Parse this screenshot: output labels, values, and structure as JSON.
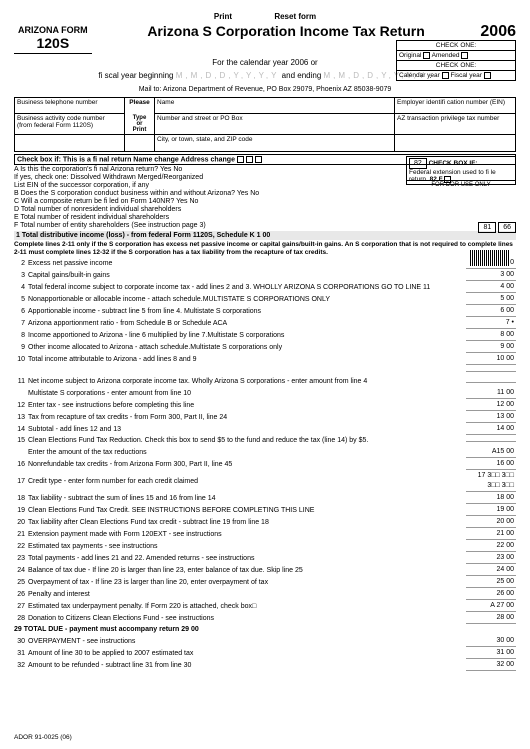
{
  "buttons": {
    "print": "Print",
    "reset": "Reset form"
  },
  "header": {
    "form_label": "ARIZONA FORM",
    "form_no": "120S",
    "title": "Arizona S Corporation Income Tax Return",
    "year": "2006",
    "calendar_line": "For the calendar year 2006 or",
    "fiscal_line": "fi scal year beginning",
    "and_ending": "and ending",
    "mailto": "Mail to: Arizona Department of Revenue, PO Box 29079, Phoenix AZ 85038-9079"
  },
  "check_one": {
    "h1": "CHECK ONE:",
    "orig": "Original",
    "amend": "Amended",
    "h2": "CHECK ONE:",
    "cal": "Calendar year",
    "fisc": "Fiscal year"
  },
  "info": {
    "btn": "Business telephone number",
    "please": "Please",
    "type": "Type",
    "or": "or",
    "print": "Print",
    "name": "Name",
    "ein": "Employer identifi cation number (EIN)",
    "bacn": "Business activity code number",
    "bacn2": "(from federal Form 1120S)",
    "street": "Number and street or PO Box",
    "azt": "AZ transaction privilege tax number",
    "city": "City, or town, state, and ZIP code"
  },
  "checkboxes": {
    "line68": "Check box if: This is a fi nal return   Name change   Address change",
    "A": "A Is this the corporation's fi nal Arizona return? Yes  No",
    "A2": "If yes, check one: Dissolved  Withdrawn  Merged/Reorganized",
    "A3": "List EIN of the successor corporation, if any",
    "B": "B Does the S corporation conduct business within and without Arizona? Yes  No",
    "C": "C Will a composite return be fi led on Form 140NR?  Yes  No",
    "D": "D Total number of nonresident individual shareholders",
    "E": "E Total number of resident individual shareholders",
    "F": "F Total number of entity shareholders (See instruction page 3)"
  },
  "box82": {
    "num": "82",
    "txt": "CHECK BOX IF:",
    "txt2": "Federal extension used to fi le return.",
    "f": "82 F"
  },
  "dor": "FOR DOR USE ONLY",
  "boxes": {
    "b81": "81",
    "b66": "66"
  },
  "bar1": "1 Total distributive income (loss) - from federal Form 1120S, Schedule K     1     00",
  "note1": "Complete lines 2-11 only if the S corporation has excess net passive income or capital gains/built-in gains. An S corporation that is not required to complete lines 2-11 must complete lines 12-32 if the S corporation has a tax liability from the recapture of tax credits.",
  "lines": [
    {
      "n": "2",
      "t": "Excess net passive income",
      "e": "2     00"
    },
    {
      "n": "3",
      "t": "Capital gains/built-in gains",
      "e": "3     00"
    },
    {
      "n": "4",
      "t": "Total federal income subject to corporate income tax - add lines 2 and 3. WHOLLY ARIZONA S CORPORATIONS GO TO LINE 11",
      "e": "4     00"
    },
    {
      "n": "5",
      "t": "Nonapportionable or allocable income - attach schedule.MULTISTATE S CORPORATIONS ONLY",
      "e": "5     00"
    },
    {
      "n": "6",
      "t": "Apportionable income - subtract line 5 from line 4. Multistate S corporations",
      "e": "6     00"
    },
    {
      "n": "7",
      "t": "Arizona apportionment ratio - from Schedule B or Schedule ACA",
      "e": "7     •"
    },
    {
      "n": "8",
      "t": "Income apportioned to Arizona - line 6 multiplied by line 7.Multistate S corporations",
      "e": "8     00"
    },
    {
      "n": "9",
      "t": "Other income allocated to Arizona - attach schedule.Multistate S corporations only",
      "e": "9     00"
    },
    {
      "n": "10",
      "t": "Total income attributable to Arizona - add lines 8 and 9",
      "e": "10   00"
    },
    {
      "n": "",
      "t": "",
      "e": ""
    },
    {
      "n": "11",
      "t": "Net income subject to Arizona corporate income tax. Wholly Arizona S corporations - enter amount from line 4",
      "e": ""
    },
    {
      "n": "",
      "t": "Multistate S corporations - enter amount from line 10",
      "e": "11    00"
    },
    {
      "n": "12",
      "t": "Enter tax - see instructions before completing this line",
      "e": "12    00"
    },
    {
      "n": "13",
      "t": "Tax from recapture of tax credits - from Form 300, Part II, line 24",
      "e": "13    00"
    },
    {
      "n": "14",
      "t": "Subtotal - add lines 12 and 13",
      "e": "14    00"
    },
    {
      "n": "15",
      "t": "Clean Elections Fund Tax Reduction. Check this box to send $5 to the fund and reduce the tax (line 14) by $5.",
      "e": ""
    },
    {
      "n": "",
      "t": "Enter the amount of the tax reductions",
      "e": "A15    00"
    },
    {
      "n": "16",
      "t": "Nonrefundable tax credits - from Arizona Form 300, Part II, line 45",
      "e": "16    00"
    },
    {
      "n": "17",
      "t": "Credit type - enter form number for each credit claimed",
      "e": "17   3□□  3□□  3□□  3□□"
    },
    {
      "n": "18",
      "t": "Tax liability - subtract the sum of lines 15 and 16 from line 14",
      "e": "18    00"
    },
    {
      "n": "19",
      "t": "Clean Elections Fund Tax Credit. SEE INSTRUCTIONS BEFORE COMPLETING THIS LINE",
      "e": "19    00"
    },
    {
      "n": "20",
      "t": "Tax liability after Clean Elections Fund tax credit - subtract line 19 from line 18",
      "e": "20    00"
    },
    {
      "n": "21",
      "t": "Extension payment made with Form 120EXT - see instructions",
      "e": "21    00"
    },
    {
      "n": "22",
      "t": "Estimated tax payments - see instructions",
      "e": "22    00"
    },
    {
      "n": "23",
      "t": "Total payments - add lines 21 and 22. Amended returns - see instructions",
      "e": "23    00"
    },
    {
      "n": "24",
      "t": "Balance of tax due - If line 20 is larger than line 23, enter balance of tax due. Skip line 25",
      "e": "24    00"
    },
    {
      "n": "25",
      "t": "Overpayment of tax - If line 23 is larger than line 20, enter overpayment of tax",
      "e": "25    00"
    },
    {
      "n": "26",
      "t": "Penalty and interest",
      "e": "26    00"
    },
    {
      "n": "27",
      "t": "Estimated tax underpayment penalty. If Form 220 is attached, check box□",
      "e": "A 27    00"
    },
    {
      "n": "28",
      "t": "Donation to Citizens Clean Elections Fund - see instructions",
      "e": "28    00"
    }
  ],
  "line29": "29 TOTAL DUE - payment must accompany return   29    00",
  "lines2": [
    {
      "n": "30",
      "t": "OVERPAYMENT  -  see instructions",
      "e": "30    00"
    },
    {
      "n": "31",
      "t": "Amount of line 30 to be applied to 2007 estimated tax",
      "e": "31   00"
    },
    {
      "n": "32",
      "t": "Amount to be refunded - subtract line 31 from line 30",
      "e": "32    00"
    }
  ],
  "footer": "ADOR 91-0025 (06)"
}
